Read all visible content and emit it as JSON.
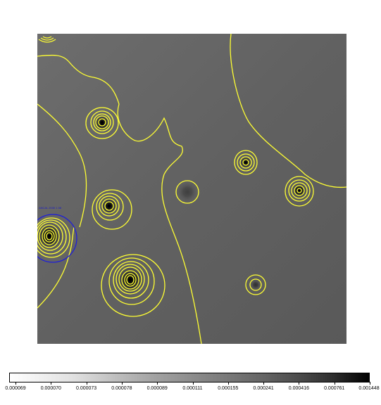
{
  "image": {
    "region_label": "ANCAL 2030 1 58",
    "contour_color": "#ffff33",
    "region_color": "#1c1cdc"
  },
  "colorbar": {
    "ticks": [
      "0.000069",
      "0.000070",
      "0.000073",
      "0.000078",
      "0.000089",
      "0.000111",
      "0.000155",
      "0.000241",
      "0.000416",
      "0.000761",
      "0.001448"
    ]
  }
}
